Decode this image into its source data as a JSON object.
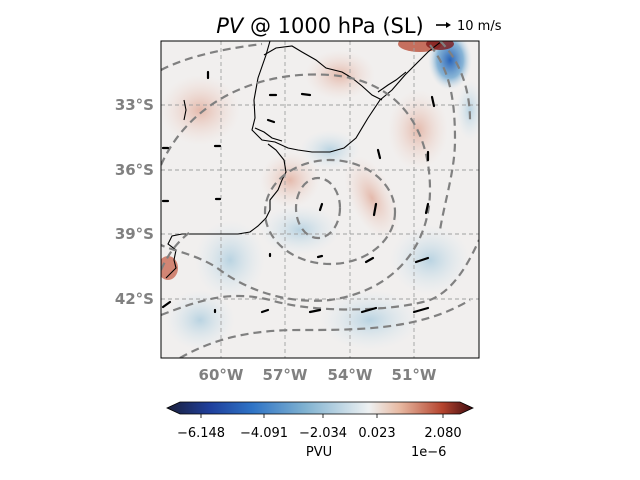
{
  "figure": {
    "title_italic": "PV",
    "title_rest": " @ 1000 hPa (SL)",
    "quiver_key_label": "10 m/s"
  },
  "map": {
    "lon_ticks": [
      "60°W",
      "57°W",
      "54°W",
      "51°W"
    ],
    "lat_ticks": [
      "33°S",
      "36°S",
      "39°S",
      "42°S"
    ],
    "gridlines": true,
    "field": "potential vorticity",
    "colormap": "diverging blue-white-red"
  },
  "colorbar": {
    "tick_labels": [
      "−6.148",
      "−4.091",
      "−2.034",
      "0.023",
      "2.080"
    ],
    "label": "PVU",
    "offset_text": "1e−6",
    "colors": [
      "#1b1f3a",
      "#1f3f9c",
      "#2f74c6",
      "#7fb1d0",
      "#e8eef0",
      "#e7b9a2",
      "#b5442e",
      "#3d0a0f"
    ]
  }
}
